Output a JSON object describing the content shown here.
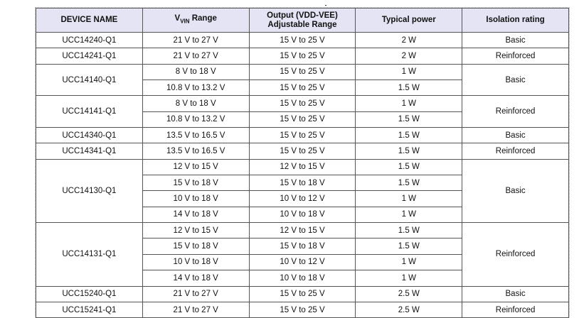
{
  "headers": {
    "device": "DEVICE NAME",
    "vin_main": "V",
    "vin_sub": "VIN",
    "vin_rest": " Range",
    "output_line1": "Output (VDD-VEE)",
    "output_line2": "Adjustable Range",
    "power": "Typical power",
    "isolation": "Isolation rating"
  },
  "devices": [
    {
      "name": "UCC14240-Q1",
      "isolation": "Basic",
      "rows": [
        {
          "vin": "21 V to 27 V",
          "out": "15 V to 25 V",
          "power": "2 W"
        }
      ]
    },
    {
      "name": "UCC14241-Q1",
      "isolation": "Reinforced",
      "rows": [
        {
          "vin": "21 V to 27 V",
          "out": "15 V to 25 V",
          "power": "2 W"
        }
      ]
    },
    {
      "name": "UCC14140-Q1",
      "isolation": "Basic",
      "rows": [
        {
          "vin": "8 V to 18 V",
          "out": "15 V to 25 V",
          "power": "1 W"
        },
        {
          "vin": "10.8 V to 13.2 V",
          "out": "15 V to 25 V",
          "power": "1.5 W"
        }
      ]
    },
    {
      "name": "UCC14141-Q1",
      "isolation": "Reinforced",
      "rows": [
        {
          "vin": "8 V to 18 V",
          "out": "15 V to 25 V",
          "power": "1 W"
        },
        {
          "vin": "10.8 V to 13.2 V",
          "out": "15 V to 25 V",
          "power": "1.5 W"
        }
      ]
    },
    {
      "name": "UCC14340-Q1",
      "isolation": "Basic",
      "rows": [
        {
          "vin": "13.5 V to 16.5 V",
          "out": "15 V to 25 V",
          "power": "1.5 W"
        }
      ]
    },
    {
      "name": "UCC14341-Q1",
      "isolation": "Reinforced",
      "rows": [
        {
          "vin": "13.5 V to 16.5 V",
          "out": "15 V to 25 V",
          "power": "1.5 W"
        }
      ]
    },
    {
      "name": "UCC14130-Q1",
      "isolation": "Basic",
      "rows": [
        {
          "vin": "12 V to 15 V",
          "out": "12 V to 15 V",
          "power": "1.5 W"
        },
        {
          "vin": "15 V to 18 V",
          "out": "15 V to 18 V",
          "power": "1.5 W"
        },
        {
          "vin": "10 V to 18 V",
          "out": "10 V to 12 V",
          "power": "1 W"
        },
        {
          "vin": "14 V to 18 V",
          "out": "10 V to 18 V",
          "power": "1 W"
        }
      ]
    },
    {
      "name": "UCC14131-Q1",
      "isolation": "Reinforced",
      "rows": [
        {
          "vin": "12 V to 15 V",
          "out": "12 V to 15 V",
          "power": "1.5 W"
        },
        {
          "vin": "15 V to 18 V",
          "out": "15 V to 18 V",
          "power": "1.5 W"
        },
        {
          "vin": "10 V to 18 V",
          "out": "10 V to 12 V",
          "power": "1 W"
        },
        {
          "vin": "14 V to 18 V",
          "out": "10 V to 18 V",
          "power": "1 W"
        }
      ]
    },
    {
      "name": "UCC15240-Q1",
      "isolation": "Basic",
      "rows": [
        {
          "vin": "21 V to 27 V",
          "out": "15 V to 25 V",
          "power": "2.5 W"
        }
      ]
    },
    {
      "name": "UCC15241-Q1",
      "isolation": "Reinforced",
      "rows": [
        {
          "vin": "21 V to 27 V",
          "out": "15 V to 25 V",
          "power": "2.5 W"
        }
      ]
    }
  ]
}
